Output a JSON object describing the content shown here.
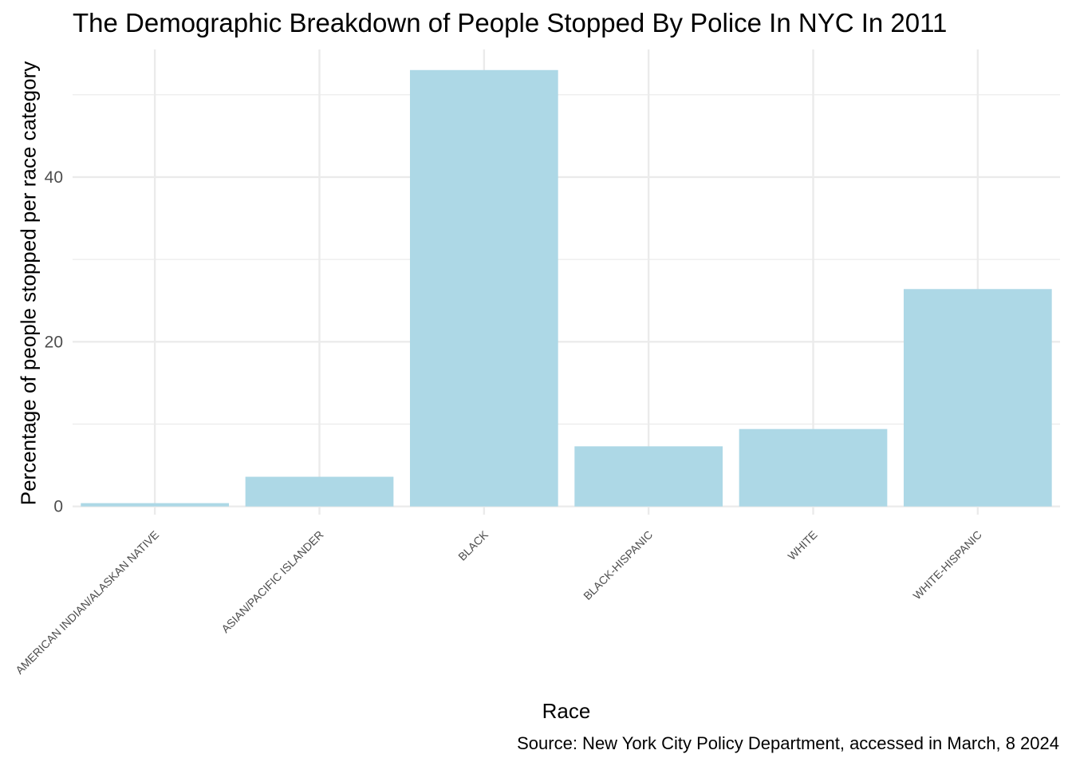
{
  "chart_data": {
    "type": "bar",
    "title": "The Demographic Breakdown of People Stopped By Police In NYC In 2011",
    "xlabel": "Race",
    "ylabel": "Percentage of people stopped per race category",
    "caption": "Source: New York City Policy Department, accessed in March, 8 2024",
    "categories": [
      "AMERICAN INDIAN/ALASKAN NATIVE",
      "ASIAN/PACIFIC ISLANDER",
      "BLACK",
      "BLACK-HISPANIC",
      "WHITE",
      "WHITE-HISPANIC"
    ],
    "values": [
      0.4,
      3.6,
      53.0,
      7.3,
      9.4,
      26.4
    ],
    "yticks": [
      0,
      20,
      40
    ],
    "ylim": [
      -1.0,
      55.5
    ],
    "grid": true,
    "bar_color": "#ADD8E6",
    "grid_color": "#EBEBEB"
  }
}
